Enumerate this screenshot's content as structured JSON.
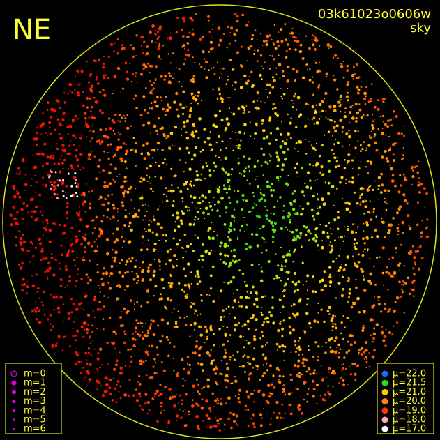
{
  "header": {
    "corner": "NE",
    "frame_id": "03k61023o0606w",
    "mode": "sky"
  },
  "magnitude_legend": {
    "items": [
      "m=0",
      "m=1",
      "m=2",
      "m=3",
      "m=4",
      "m=5",
      "m=6"
    ]
  },
  "brightness_legend": {
    "items": [
      "μ=22.0",
      "μ=21.5",
      "μ=21.0",
      "μ=20.0",
      "μ=19.0",
      "μ=18.0",
      "μ=17.0"
    ]
  }
}
